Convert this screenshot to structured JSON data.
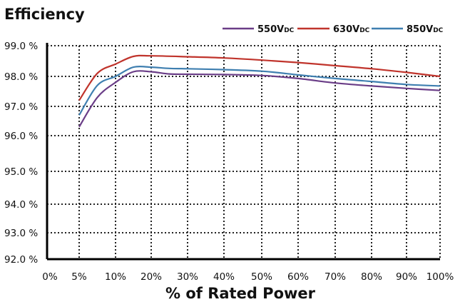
{
  "chart_data": {
    "type": "line",
    "title": "Efficiency",
    "xlabel": "% of Rated Power",
    "ylabel": "",
    "x_tick_labels": [
      "0%",
      "5%",
      "10%",
      "20%",
      "30%",
      "40%",
      "50%",
      "60%",
      "70%",
      "80%",
      "90%",
      "100%"
    ],
    "y_tick_labels": [
      "99.0 %",
      "98.0 %",
      "97.0 %",
      "96.0 %",
      "95.0 %",
      "94.0 %",
      "93.0 %",
      "92.0 %"
    ],
    "grid": true,
    "legend_position": "top-right",
    "series": [
      {
        "name": "550V",
        "name_sub": "DC",
        "color": "#6a3d87",
        "points": [
          [
            5,
            96.3
          ],
          [
            7.5,
            97.3
          ],
          [
            10,
            97.8
          ],
          [
            15,
            98.15
          ],
          [
            20,
            98.15
          ],
          [
            25,
            98.08
          ],
          [
            30,
            98.07
          ],
          [
            40,
            98.06
          ],
          [
            50,
            98.03
          ],
          [
            60,
            97.93
          ],
          [
            70,
            97.78
          ],
          [
            80,
            97.68
          ],
          [
            90,
            97.6
          ],
          [
            100,
            97.53
          ]
        ]
      },
      {
        "name": "630V",
        "name_sub": "DC",
        "color": "#c0342c",
        "points": [
          [
            5,
            97.2
          ],
          [
            7.5,
            98.1
          ],
          [
            10,
            98.4
          ],
          [
            15,
            98.65
          ],
          [
            20,
            98.67
          ],
          [
            30,
            98.64
          ],
          [
            40,
            98.6
          ],
          [
            50,
            98.53
          ],
          [
            60,
            98.45
          ],
          [
            70,
            98.35
          ],
          [
            80,
            98.25
          ],
          [
            90,
            98.13
          ],
          [
            100,
            98.0
          ]
        ]
      },
      {
        "name": "850V",
        "name_sub": "DC",
        "color": "#3f7fb0",
        "points": [
          [
            5,
            96.7
          ],
          [
            7.5,
            97.7
          ],
          [
            10,
            98.0
          ],
          [
            15,
            98.3
          ],
          [
            20,
            98.3
          ],
          [
            25,
            98.26
          ],
          [
            30,
            98.25
          ],
          [
            40,
            98.22
          ],
          [
            50,
            98.17
          ],
          [
            60,
            98.05
          ],
          [
            70,
            97.93
          ],
          [
            80,
            97.83
          ],
          [
            90,
            97.73
          ],
          [
            100,
            97.68
          ]
        ]
      }
    ]
  }
}
